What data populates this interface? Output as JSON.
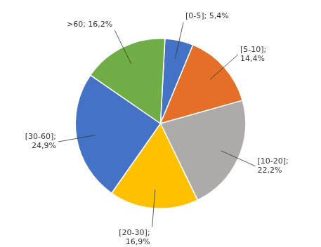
{
  "chart_data": {
    "type": "pie",
    "categories": [
      "[0-5]",
      "[5-10]",
      "[10-20]",
      "[20-30]",
      "[30-60]",
      ">60"
    ],
    "values": [
      5.4,
      14.4,
      22.2,
      16.9,
      24.9,
      16.2
    ],
    "value_labels": [
      "[0-5]; 5,4%",
      "[5-10];\n14,4%",
      "[10-20];\n22,2%",
      "[20-30];\n16,9%",
      "[30-60];\n24,9%",
      ">60; 16,2%"
    ],
    "colors": [
      "#4472C4",
      "#E36F28",
      "#AEAAAA",
      "#FFC000",
      "#4472C4",
      "#70AD47"
    ],
    "data_labels": true
  }
}
